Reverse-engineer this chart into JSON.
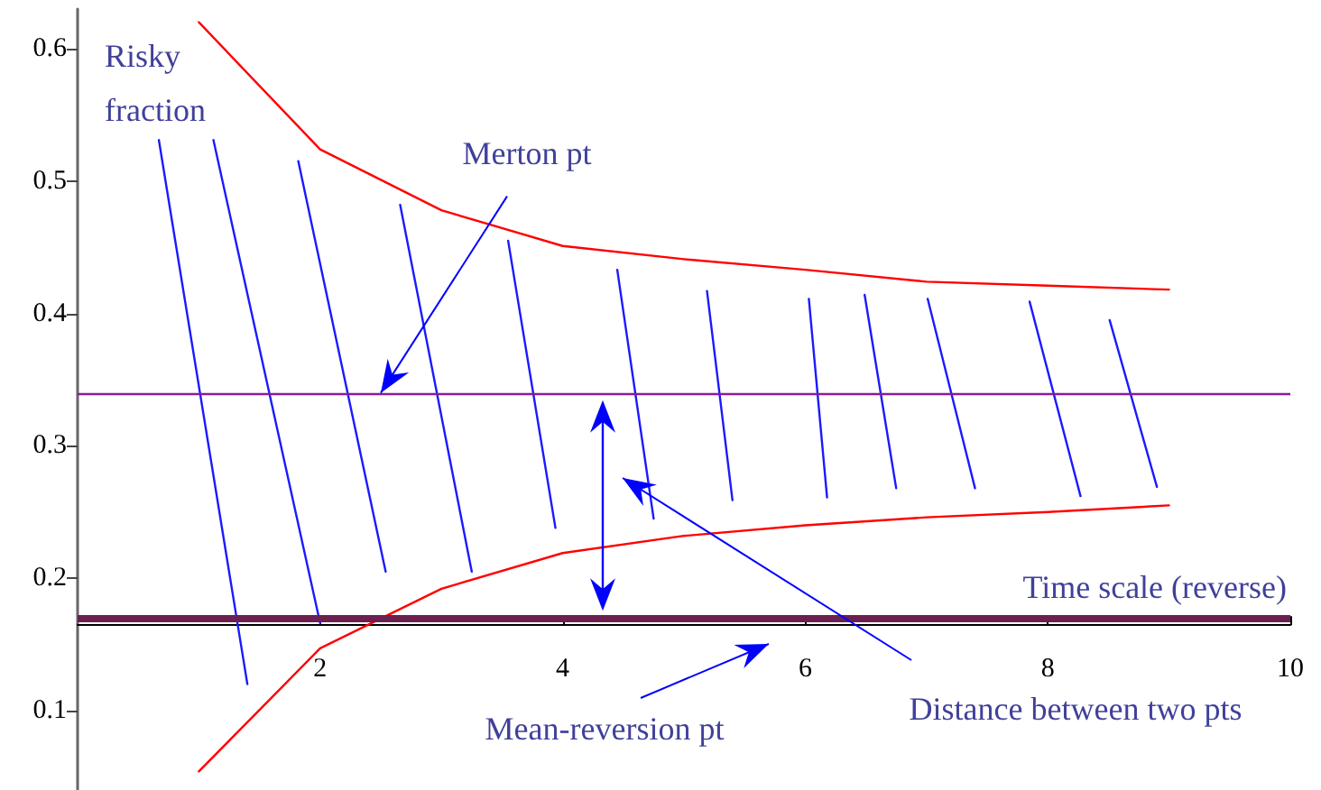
{
  "chart_data": {
    "type": "line",
    "xlabel": "Time scale (reverse)",
    "ylabel": "Risky fraction",
    "xlim": [
      0,
      10
    ],
    "xticks": [
      2,
      4,
      6,
      8,
      10
    ],
    "ylim": [
      0.04,
      0.63
    ],
    "yticks": [
      0.1,
      0.2,
      0.3,
      0.4,
      0.5,
      0.6
    ],
    "grid": false,
    "marker": "none",
    "line_style": "solid",
    "series": [
      {
        "color": "#ff0000",
        "x": [
          1,
          2,
          3,
          4,
          5,
          6,
          7,
          8,
          9
        ],
        "values": [
          0.62,
          0.524,
          0.478,
          0.451,
          0.441,
          0.433,
          0.424,
          0.421,
          0.418
        ]
      },
      {
        "color": "#ff0000",
        "x": [
          1,
          2,
          3,
          4,
          5,
          6,
          7,
          8,
          9
        ],
        "values": [
          0.054,
          0.147,
          0.192,
          0.219,
          0.232,
          0.24,
          0.246,
          0.25,
          0.255
        ]
      },
      {
        "color": "#1a1aff",
        "x": [
          0.67,
          1.4
        ],
        "values": [
          0.531,
          0.12
        ]
      },
      {
        "color": "#1a1aff",
        "x": [
          1.12,
          2.0
        ],
        "values": [
          0.531,
          0.166
        ]
      },
      {
        "color": "#1a1aff",
        "x": [
          1.82,
          2.54
        ],
        "values": [
          0.515,
          0.205
        ]
      },
      {
        "color": "#1a1aff",
        "x": [
          2.66,
          3.25
        ],
        "values": [
          0.482,
          0.205
        ]
      },
      {
        "color": "#1a1aff",
        "x": [
          3.55,
          3.94
        ],
        "values": [
          0.455,
          0.238
        ]
      },
      {
        "color": "#1a1aff",
        "x": [
          4.45,
          4.75
        ],
        "values": [
          0.433,
          0.245
        ]
      },
      {
        "color": "#1a1aff",
        "x": [
          5.19,
          5.4
        ],
        "values": [
          0.417,
          0.259
        ]
      },
      {
        "color": "#1a1aff",
        "x": [
          6.03,
          6.18
        ],
        "values": [
          0.411,
          0.261
        ]
      },
      {
        "color": "#1a1aff",
        "x": [
          6.49,
          6.75
        ],
        "values": [
          0.414,
          0.268
        ]
      },
      {
        "color": "#1a1aff",
        "x": [
          7.01,
          7.4
        ],
        "values": [
          0.411,
          0.268
        ]
      },
      {
        "color": "#1a1aff",
        "x": [
          7.85,
          8.27
        ],
        "values": [
          0.409,
          0.262
        ]
      },
      {
        "color": "#1a1aff",
        "x": [
          8.51,
          8.9
        ],
        "values": [
          0.395,
          0.269
        ]
      }
    ],
    "ref_lines": [
      {
        "axis": "y",
        "value": 0.34,
        "color": "#8b1a9b"
      },
      {
        "axis": "y",
        "value": 0.17,
        "color": "#6b2050"
      }
    ],
    "annotations": [
      {
        "text": "Merton pt",
        "x": 2.5,
        "y": 0.34
      },
      "Mean-reversion pt",
      "Distance between two pts"
    ]
  }
}
